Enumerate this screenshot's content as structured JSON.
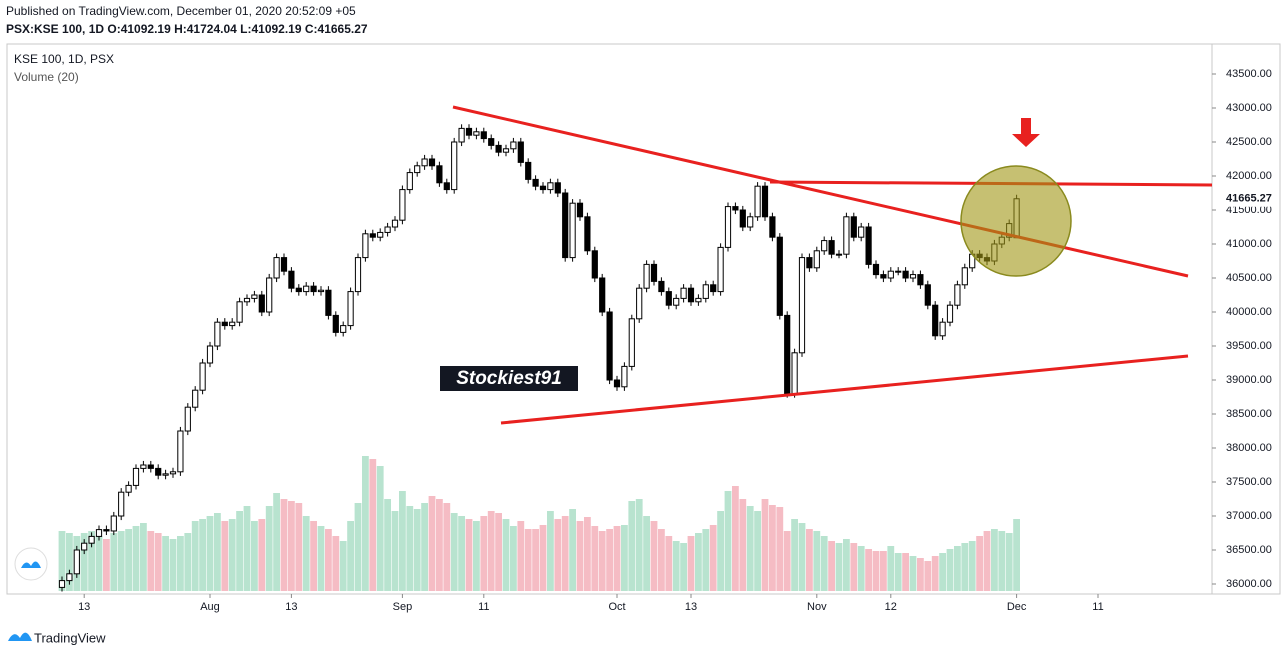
{
  "header": {
    "published": "Published on TradingView.com, December 01, 2020 20:52:09 +05",
    "symbol_line": "PSX:KSE 100, 1D O:41092.19 H:41724.04 L:41092.19 C:41665.27"
  },
  "chart_data": {
    "type": "candlestick",
    "title": "KSE 100, 1D, PSX",
    "volume_label": "Volume (20)",
    "watermark": "Stockiest91",
    "last_price": 41665.27,
    "up_color": "#ffffff",
    "down_color": "#000000",
    "volume_up_color": "#b8e3cf",
    "volume_down_color": "#f5bcc4",
    "grid": false,
    "ylim": [
      35853,
      43941
    ],
    "yticks": [
      {
        "value": 43500,
        "label": "43500.00"
      },
      {
        "value": 43000,
        "label": "43000.00"
      },
      {
        "value": 42500,
        "label": "42500.00"
      },
      {
        "value": 42000,
        "label": "42000.00"
      },
      {
        "value": 41500,
        "label": "41500.00"
      },
      {
        "value": 41000,
        "label": "41000.00"
      },
      {
        "value": 40500,
        "label": "40500.00"
      },
      {
        "value": 40000,
        "label": "40000.00"
      },
      {
        "value": 39500,
        "label": "39500.00"
      },
      {
        "value": 39000,
        "label": "39000.00"
      },
      {
        "value": 38500,
        "label": "38500.00"
      },
      {
        "value": 38000,
        "label": "38000.00"
      },
      {
        "value": 37500,
        "label": "37500.00"
      },
      {
        "value": 37000,
        "label": "37000.00"
      },
      {
        "value": 36500,
        "label": "36500.00"
      },
      {
        "value": 36000,
        "label": "36000.00"
      }
    ],
    "categories": [
      null,
      null,
      null,
      "13",
      null,
      null,
      null,
      null,
      null,
      null,
      null,
      null,
      null,
      null,
      null,
      null,
      null,
      null,
      null,
      null,
      "Aug",
      null,
      null,
      null,
      null,
      null,
      null,
      null,
      null,
      null,
      null,
      "13",
      null,
      null,
      null,
      null,
      null,
      null,
      null,
      null,
      null,
      null,
      null,
      null,
      null,
      null,
      "Sep",
      null,
      null,
      null,
      null,
      null,
      null,
      null,
      null,
      null,
      null,
      "11",
      null,
      null,
      null,
      null,
      null,
      null,
      null,
      null,
      null,
      null,
      null,
      null,
      null,
      null,
      null,
      null,
      null,
      "Oct",
      null,
      null,
      null,
      null,
      null,
      null,
      null,
      null,
      null,
      "13",
      null,
      null,
      null,
      null,
      null,
      null,
      null,
      null,
      null,
      null,
      null,
      null,
      null,
      null,
      null,
      null,
      "Nov",
      null,
      null,
      null,
      null,
      null,
      null,
      null,
      null,
      null,
      "12",
      null,
      null,
      null,
      null,
      null,
      null,
      null,
      null,
      null,
      null,
      null,
      null,
      null,
      null,
      null,
      null,
      "Dec",
      null,
      null,
      null,
      null,
      null,
      null,
      null,
      null,
      null,
      null,
      "11",
      null,
      null,
      null,
      null,
      null,
      null,
      null,
      null,
      null
    ],
    "open": [
      35950,
      36050,
      36150,
      36500,
      36600,
      36700,
      36800,
      36780,
      37000,
      37350,
      37450,
      37700,
      37750,
      37700,
      37600,
      37620,
      37650,
      38250,
      38600,
      38850,
      39250,
      39500,
      39850,
      39800,
      39850,
      40150,
      40200,
      40250,
      40000,
      40500,
      40800,
      40600,
      40350,
      40300,
      40380,
      40300,
      40320,
      39950,
      39700,
      39800,
      40300,
      40800,
      41150,
      41100,
      41170,
      41250,
      41350,
      41800,
      42050,
      42150,
      42250,
      42150,
      41900,
      41800,
      42500,
      42700,
      42600,
      42650,
      42550,
      42450,
      42350,
      42400,
      42500,
      42200,
      41950,
      41850,
      41800,
      41900,
      41750,
      40800,
      41600,
      41400,
      40900,
      40500,
      40000,
      39000,
      38900,
      39200,
      39900,
      40350,
      40700,
      40450,
      40300,
      40100,
      40200,
      40350,
      40150,
      40200,
      40400,
      40300,
      40950,
      41550,
      41500,
      41250,
      41400,
      41850,
      41400,
      41100,
      39950,
      38800,
      39400,
      40800,
      40650,
      40900,
      41050,
      40850,
      40850,
      41400,
      41100,
      41250,
      40700,
      40550,
      40500,
      40600,
      40600,
      40500,
      40550,
      40400,
      40100,
      39650,
      39850,
      40100,
      40400,
      40650,
      40850,
      40800,
      40750,
      41000,
      41100,
      41092.19,
      null,
      null,
      null,
      null,
      null,
      null,
      null,
      null,
      null,
      null,
      null,
      null,
      null,
      null,
      null,
      null,
      null,
      null,
      null,
      null
    ],
    "high": [
      36110,
      36210,
      36560,
      36660,
      36760,
      36860,
      36860,
      37060,
      37410,
      37510,
      37760,
      37810,
      37810,
      37760,
      37680,
      37710,
      38310,
      38660,
      38910,
      39310,
      39560,
      39910,
      39910,
      39910,
      40210,
      40260,
      40310,
      40310,
      40560,
      40860,
      40860,
      40660,
      40410,
      40440,
      40440,
      40380,
      40380,
      40010,
      39860,
      40360,
      40860,
      41210,
      41210,
      41230,
      41310,
      41410,
      41860,
      42110,
      42210,
      42310,
      42310,
      42210,
      41960,
      42560,
      42760,
      42760,
      42710,
      42710,
      42610,
      42510,
      42460,
      42560,
      42560,
      42260,
      42010,
      41910,
      41960,
      41960,
      41810,
      41660,
      41660,
      41460,
      40960,
      40560,
      40060,
      39060,
      39260,
      39960,
      40410,
      40760,
      40760,
      40510,
      40360,
      40260,
      40410,
      40410,
      40260,
      40460,
      40460,
      41010,
      41610,
      41610,
      41560,
      41460,
      41910,
      41910,
      41460,
      41160,
      40010,
      39460,
      40860,
      40860,
      40960,
      41110,
      41110,
      40910,
      41460,
      41460,
      41310,
      41310,
      40760,
      40610,
      40660,
      40660,
      40660,
      40610,
      40610,
      40460,
      40160,
      39910,
      40160,
      40460,
      40710,
      40910,
      40910,
      40860,
      41060,
      41160,
      41360,
      41724.04,
      null,
      null,
      null,
      null,
      null,
      null,
      null,
      null,
      null,
      null,
      null,
      null,
      null,
      null,
      null,
      null,
      null,
      null,
      null,
      null
    ],
    "low": [
      35890,
      35990,
      36090,
      36440,
      36540,
      36640,
      36720,
      36720,
      36940,
      37290,
      37390,
      37640,
      37640,
      37540,
      37540,
      37560,
      37590,
      38190,
      38540,
      38790,
      39190,
      39440,
      39740,
      39740,
      39790,
      40090,
      40140,
      39940,
      39940,
      40440,
      40540,
      40290,
      40240,
      40240,
      40240,
      40240,
      39890,
      39640,
      39640,
      39740,
      40240,
      40740,
      41040,
      41040,
      41110,
      41190,
      41290,
      41740,
      41990,
      42090,
      42090,
      41840,
      41740,
      41740,
      42440,
      42540,
      42540,
      42490,
      42390,
      42290,
      42290,
      42340,
      42140,
      41890,
      41790,
      41740,
      41740,
      41690,
      40740,
      40740,
      41340,
      40840,
      40440,
      39940,
      38940,
      38840,
      38840,
      39140,
      39840,
      40290,
      40390,
      40240,
      40040,
      40040,
      40140,
      40090,
      40090,
      40140,
      40240,
      40240,
      40890,
      41440,
      41190,
      41190,
      41340,
      41340,
      41040,
      39890,
      38740,
      38740,
      39340,
      40590,
      40590,
      40840,
      40790,
      40790,
      40790,
      41040,
      41040,
      40640,
      40490,
      40440,
      40440,
      40540,
      40440,
      40440,
      40340,
      40040,
      39590,
      39590,
      39790,
      40040,
      40340,
      40590,
      40740,
      40690,
      40690,
      40940,
      41040,
      41092.19,
      null,
      null,
      null,
      null,
      null,
      null,
      null,
      null,
      null,
      null,
      null,
      null,
      null,
      null,
      null,
      null,
      null,
      null,
      null,
      null
    ],
    "close": [
      36050,
      36150,
      36500,
      36600,
      36700,
      36800,
      36780,
      37000,
      37350,
      37450,
      37700,
      37750,
      37700,
      37600,
      37620,
      37650,
      38250,
      38600,
      38850,
      39250,
      39500,
      39850,
      39800,
      39850,
      40150,
      40200,
      40250,
      40000,
      40500,
      40800,
      40600,
      40350,
      40300,
      40380,
      40300,
      40320,
      39950,
      39700,
      39800,
      40300,
      40800,
      41150,
      41100,
      41170,
      41250,
      41350,
      41800,
      42050,
      42150,
      42250,
      42150,
      41900,
      41800,
      42500,
      42700,
      42600,
      42650,
      42550,
      42450,
      42350,
      42400,
      42500,
      42200,
      41950,
      41850,
      41800,
      41900,
      41750,
      40800,
      41600,
      41400,
      40900,
      40500,
      40000,
      39000,
      38900,
      39200,
      39900,
      40350,
      40700,
      40450,
      40300,
      40100,
      40200,
      40350,
      40150,
      40200,
      40400,
      40300,
      40950,
      41550,
      41500,
      41250,
      41400,
      41850,
      41400,
      41100,
      39950,
      38800,
      39400,
      40800,
      40650,
      40900,
      41050,
      40850,
      40850,
      41400,
      41100,
      41250,
      40700,
      40550,
      40500,
      40600,
      40600,
      40500,
      40550,
      40400,
      40100,
      39650,
      39850,
      40100,
      40400,
      40650,
      40850,
      40800,
      40750,
      41000,
      41100,
      41300,
      41665.27,
      null,
      null,
      null,
      null,
      null,
      null,
      null,
      null,
      null,
      null,
      null,
      null,
      null,
      null,
      null,
      null,
      null,
      null,
      null,
      null
    ],
    "volume": [
      60,
      58,
      55,
      58,
      60,
      55,
      52,
      58,
      60,
      62,
      65,
      68,
      60,
      58,
      55,
      52,
      55,
      58,
      70,
      72,
      75,
      78,
      70,
      72,
      80,
      85,
      70,
      72,
      85,
      98,
      92,
      90,
      88,
      75,
      70,
      65,
      62,
      55,
      50,
      70,
      88,
      135,
      132,
      125,
      92,
      80,
      100,
      85,
      82,
      88,
      95,
      92,
      88,
      78,
      75,
      72,
      70,
      75,
      80,
      78,
      72,
      65,
      70,
      62,
      62,
      66,
      80,
      72,
      75,
      82,
      70,
      74,
      65,
      60,
      62,
      65,
      66,
      90,
      92,
      75,
      70,
      62,
      55,
      50,
      48,
      55,
      58,
      62,
      66,
      80,
      100,
      105,
      92,
      85,
      80,
      92,
      86,
      84,
      60,
      72,
      68,
      62,
      60,
      55,
      50,
      48,
      52,
      48,
      45,
      42,
      40,
      40,
      45,
      38,
      38,
      35,
      33,
      30,
      35,
      38,
      42,
      45,
      48,
      50,
      55,
      60,
      62,
      60,
      58,
      72,
      null,
      null,
      null,
      null,
      null,
      null,
      null,
      null,
      null,
      null,
      null,
      null,
      null,
      null,
      null,
      null,
      null,
      null,
      null,
      null
    ]
  },
  "footer": {
    "brand": "TradingView"
  }
}
